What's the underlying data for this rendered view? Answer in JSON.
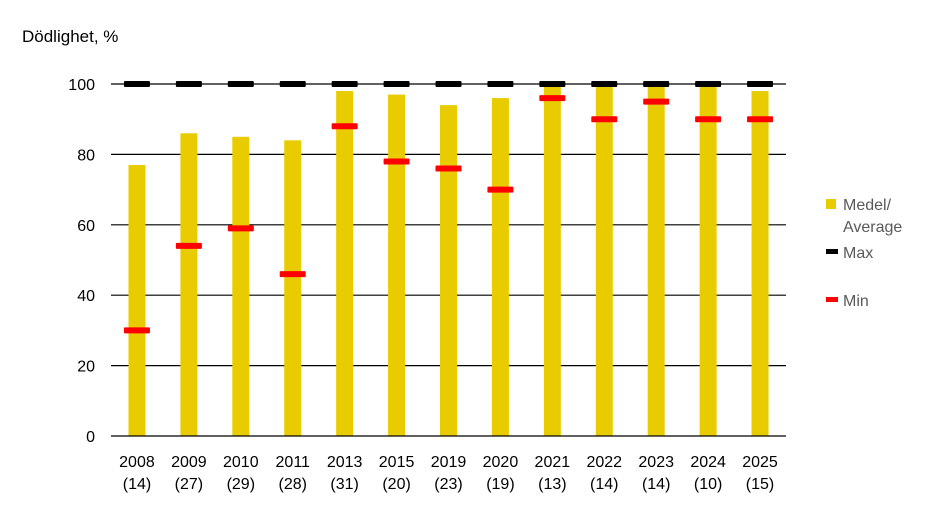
{
  "chart_data": {
    "type": "bar",
    "title": "",
    "ylabel": "Dödlighet, %",
    "xlabel": "",
    "ylim": [
      0,
      100
    ],
    "yticks": [
      0,
      20,
      40,
      60,
      80,
      100
    ],
    "grid": true,
    "legend_position": "right",
    "categories": [
      {
        "year": "2008",
        "n": "(14)"
      },
      {
        "year": "2009",
        "n": "(27)"
      },
      {
        "year": "2010",
        "n": "(29)"
      },
      {
        "year": "2011",
        "n": "(28)"
      },
      {
        "year": "2013",
        "n": "(31)"
      },
      {
        "year": "2015",
        "n": "(20)"
      },
      {
        "year": "2019",
        "n": "(23)"
      },
      {
        "year": "2020",
        "n": "(19)"
      },
      {
        "year": "2021",
        "n": "(13)"
      },
      {
        "year": "2022",
        "n": "(14)"
      },
      {
        "year": "2023",
        "n": "(14)"
      },
      {
        "year": "2024",
        "n": "(10)"
      },
      {
        "year": "2025",
        "n": "(15)"
      }
    ],
    "series": [
      {
        "name": "Medel/ Average",
        "legend_lines": [
          "Medel/",
          "Average"
        ],
        "type": "bar",
        "color": "#E8CC00",
        "values": [
          77,
          86,
          85,
          84,
          98,
          97,
          94,
          96,
          100,
          100,
          100,
          100,
          98
        ]
      },
      {
        "name": "Max",
        "legend_lines": [
          "Max"
        ],
        "type": "marker",
        "color": "#000000",
        "values": [
          100,
          100,
          100,
          100,
          100,
          100,
          100,
          100,
          100,
          100,
          100,
          100,
          100
        ]
      },
      {
        "name": "Min",
        "legend_lines": [
          "Min"
        ],
        "type": "marker",
        "color": "#FF0000",
        "values": [
          30,
          54,
          59,
          46,
          88,
          78,
          76,
          70,
          96,
          90,
          95,
          90,
          90
        ]
      }
    ]
  }
}
